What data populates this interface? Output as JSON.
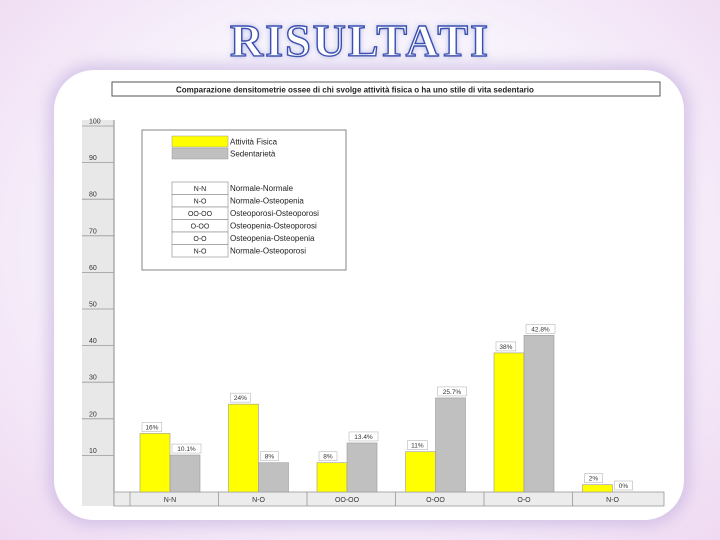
{
  "slide": {
    "title": "RISULTATI"
  },
  "chart_data": {
    "type": "bar",
    "title": "Comparazione densitometrie ossee di chi svolge attività fisica o ha uno stile di vita sedentario",
    "categories": [
      "N-N",
      "N-O",
      "OO-OO",
      "O-OO",
      "O-O",
      "N-O"
    ],
    "series": [
      {
        "name": "Attività Fisica",
        "values": [
          16,
          24,
          8,
          11,
          38,
          2
        ],
        "labels": [
          "16%",
          "24%",
          "8%",
          "11%",
          "38%",
          "2%"
        ],
        "color": "#ffff00"
      },
      {
        "name": "Sedentarietà",
        "values": [
          10.1,
          8,
          13.4,
          25.7,
          42.8,
          0
        ],
        "labels": [
          "10.1%",
          "8%",
          "13.4%",
          "25.7%",
          "42.8%",
          "0%"
        ],
        "color": "#c0c0c0"
      }
    ],
    "yticks": [
      10,
      20,
      30,
      40,
      50,
      60,
      70,
      80,
      90,
      100
    ],
    "ylim": [
      0,
      100
    ],
    "legend_position": "top-left",
    "code_legend": [
      {
        "code": "N-N",
        "meaning": "Normale-Normale"
      },
      {
        "code": "N-O",
        "meaning": "Normale-Osteopenia"
      },
      {
        "code": "OO-OO",
        "meaning": "Osteoporosi-Osteoporosi"
      },
      {
        "code": "O-OO",
        "meaning": "Osteopenia-Osteoporosi"
      },
      {
        "code": "O-O",
        "meaning": "Osteopenia-Osteopenia"
      },
      {
        "code": "N-O",
        "meaning": "Normale-Osteoporosi"
      }
    ]
  }
}
